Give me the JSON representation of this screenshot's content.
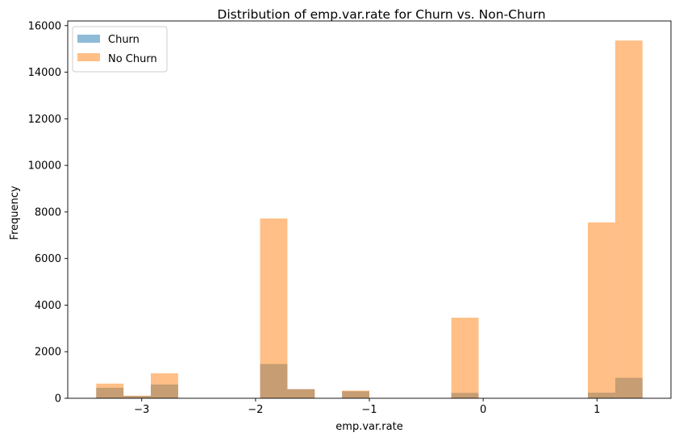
{
  "chart_data": {
    "type": "bar",
    "title": "Distribution of emp.var.rate for Churn vs. Non-Churn",
    "xlabel": "emp.var.rate",
    "ylabel": "Frequency",
    "xlim": [
      -3.65,
      1.65
    ],
    "ylim": [
      0,
      16200
    ],
    "x_ticks": [
      -3,
      -2,
      -1,
      0,
      1
    ],
    "y_ticks": [
      0,
      2000,
      4000,
      6000,
      8000,
      10000,
      12000,
      14000,
      16000
    ],
    "grid": false,
    "legend_position": "top-left",
    "bins": [
      {
        "x0": -3.4,
        "x1": -3.16
      },
      {
        "x0": -3.16,
        "x1": -2.92
      },
      {
        "x0": -2.92,
        "x1": -2.68
      },
      {
        "x0": -1.96,
        "x1": -1.72
      },
      {
        "x0": -1.72,
        "x1": -1.48
      },
      {
        "x0": -1.24,
        "x1": -1.0
      },
      {
        "x0": -0.28,
        "x1": -0.04
      },
      {
        "x0": 0.92,
        "x1": 1.16
      },
      {
        "x0": 1.16,
        "x1": 1.4
      }
    ],
    "series": [
      {
        "name": "Churn",
        "color": "#1f77b4",
        "values": [
          450,
          100,
          590,
          1470,
          390,
          300,
          230,
          240,
          880
        ]
      },
      {
        "name": "No Churn",
        "color": "#ff7f0e",
        "values": [
          630,
          110,
          1070,
          7720,
          390,
          330,
          3460,
          7550,
          15360
        ]
      }
    ]
  }
}
